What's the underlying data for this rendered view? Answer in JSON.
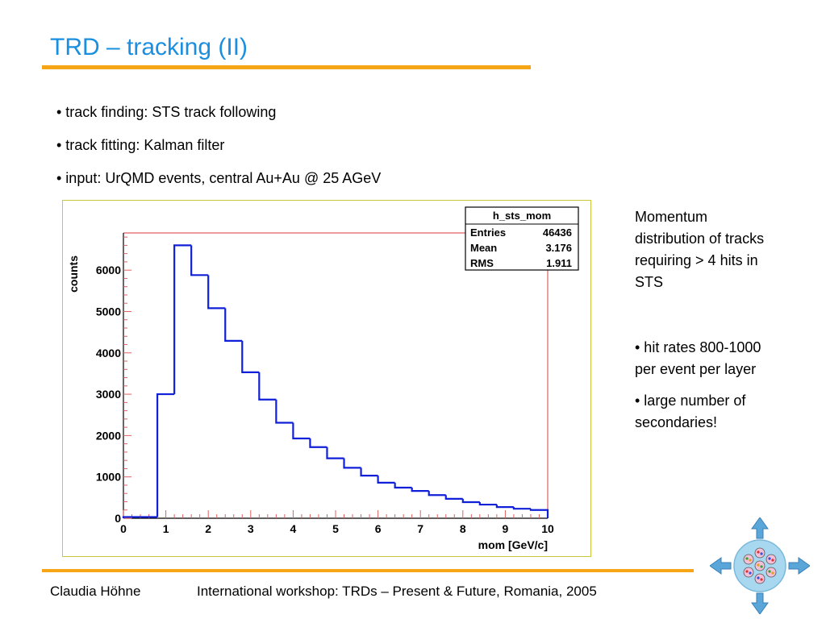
{
  "slide": {
    "title": "TRD – tracking (II)",
    "bullets": [
      "• track finding: STS track following",
      "• track fitting: Kalman filter",
      "• input: UrQMD events, central Au+Au @ 25 AGeV"
    ],
    "caption": "Momentum distribution of tracks requiring > 4 hits in STS",
    "side_bullets": [
      "• hit rates 800-1000 per event per layer",
      "• large number of secondaries!"
    ],
    "footer_author": "Claudia Höhne",
    "footer_event": "International workshop: TRDs – Present & Future, Romania, 2005",
    "logo_icon": "cbm-detector-icon"
  },
  "colors": {
    "title": "#1a8fe0",
    "rule": "#f5a516",
    "histogram": "#1020d8",
    "frame_line": "#e06060",
    "chart_border": "#c9c63a"
  },
  "chart_data": {
    "type": "bar",
    "histogram_style": "step",
    "title": "",
    "xlabel": "mom [GeV/c]",
    "ylabel": "counts",
    "xlim": [
      0,
      10
    ],
    "ylim": [
      0,
      6900
    ],
    "x_ticks": [
      "0",
      "1",
      "2",
      "3",
      "4",
      "5",
      "6",
      "7",
      "8",
      "9",
      "10"
    ],
    "y_ticks": [
      "0",
      "1000",
      "2000",
      "3000",
      "4000",
      "5000",
      "6000"
    ],
    "bin_edges": [
      0,
      0.4,
      0.8,
      1.2,
      1.6,
      2.0,
      2.4,
      2.8,
      3.2,
      3.6,
      4.0,
      4.4,
      4.8,
      5.2,
      5.6,
      6.0,
      6.4,
      6.8,
      7.2,
      7.6,
      8.0,
      8.4,
      8.8,
      9.2,
      9.6,
      10.0
    ],
    "values": [
      30,
      30,
      3000,
      6600,
      5880,
      5080,
      4290,
      3530,
      2870,
      2310,
      1930,
      1720,
      1450,
      1220,
      1030,
      860,
      740,
      660,
      560,
      470,
      390,
      330,
      270,
      230,
      200
    ],
    "stats_box": {
      "name": "h_sts_mom",
      "rows": [
        {
          "label": "Entries",
          "value": "46436"
        },
        {
          "label": "Mean",
          "value": "3.176"
        },
        {
          "label": "RMS",
          "value": "1.911"
        }
      ]
    }
  }
}
